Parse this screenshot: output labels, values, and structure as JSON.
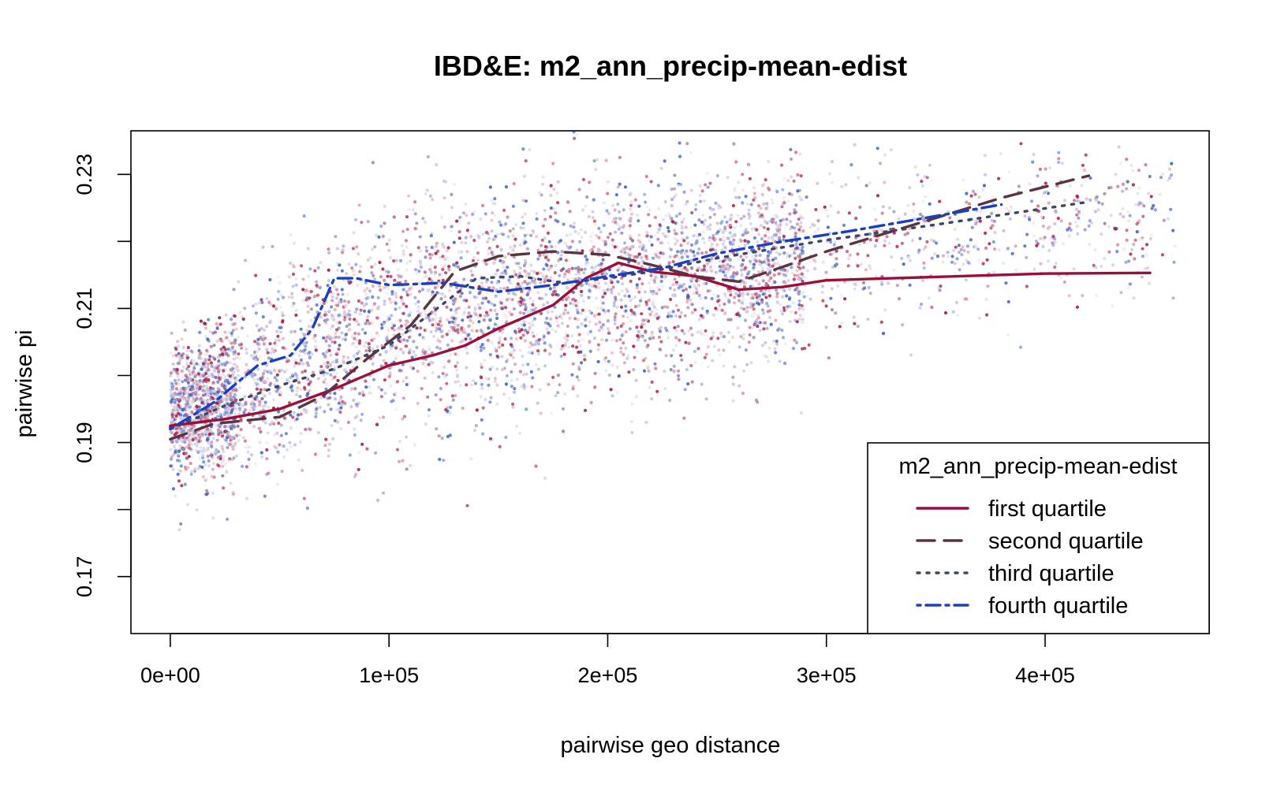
{
  "chart_data": {
    "type": "scatter",
    "title": "IBD&E: m2_ann_precip-mean-edist",
    "xlabel": "pairwise geo distance",
    "ylabel": "pairwise pi",
    "xlim": [
      -18000,
      475000
    ],
    "ylim": [
      0.1615,
      0.2365
    ],
    "x_ticks": [
      0,
      100000,
      200000,
      300000,
      400000
    ],
    "x_tick_labels": [
      "0e+00",
      "1e+05",
      "2e+05",
      "3e+05",
      "4e+05"
    ],
    "y_ticks": [
      0.17,
      0.18,
      0.19,
      0.2,
      0.21,
      0.22,
      0.23
    ],
    "y_tick_labels": [
      "0.17",
      "",
      "0.19",
      "",
      "0.21",
      "",
      "0.23"
    ],
    "grid": false,
    "legend": {
      "title": "m2_ann_precip-mean-edist",
      "position": "bottom-right",
      "entries": [
        "first quartile",
        "second quartile",
        "third quartile",
        "fourth quartile"
      ]
    },
    "point_colors": [
      "#a3123c",
      "#c9748f",
      "#e2b9c6",
      "#e3e2ea",
      "#c3c8e6",
      "#7f92d4",
      "#3a5fc0"
    ],
    "series": [
      {
        "name": "first quartile",
        "color": "#9b0f3a",
        "dash": "solid",
        "x": [
          0,
          25000,
          50000,
          75000,
          100000,
          120000,
          135000,
          150000,
          175000,
          190000,
          205000,
          220000,
          240000,
          260000,
          280000,
          300000,
          350000,
          400000,
          448000
        ],
        "y": [
          0.1925,
          0.1935,
          0.195,
          0.198,
          0.2015,
          0.203,
          0.2045,
          0.207,
          0.2105,
          0.2145,
          0.2168,
          0.2155,
          0.2148,
          0.2128,
          0.2132,
          0.2142,
          0.2147,
          0.2152,
          0.2153
        ]
      },
      {
        "name": "second quartile",
        "color": "#5c3340",
        "dash": "long",
        "x": [
          0,
          20000,
          50000,
          70000,
          90000,
          110000,
          130000,
          150000,
          175000,
          200000,
          220000,
          240000,
          260000,
          280000,
          300000,
          340000,
          380000,
          420000
        ],
        "y": [
          0.1905,
          0.1928,
          0.1938,
          0.197,
          0.2025,
          0.2075,
          0.2155,
          0.2178,
          0.2185,
          0.218,
          0.2165,
          0.2148,
          0.214,
          0.2162,
          0.2185,
          0.2225,
          0.2265,
          0.2298
        ]
      },
      {
        "name": "third quartile",
        "color": "#3e4566",
        "dash": "dotted",
        "x": [
          0,
          25000,
          50000,
          75000,
          100000,
          120000,
          140000,
          160000,
          180000,
          200000,
          220000,
          250000,
          300000,
          350000,
          418000
        ],
        "y": [
          0.192,
          0.1955,
          0.1985,
          0.201,
          0.2045,
          0.2095,
          0.2145,
          0.2148,
          0.2138,
          0.2145,
          0.2155,
          0.2175,
          0.2202,
          0.2225,
          0.2258
        ]
      },
      {
        "name": "fourth quartile",
        "color": "#1a3fc0",
        "dash": "dotdash",
        "x": [
          0,
          20000,
          40000,
          55000,
          65000,
          75000,
          85000,
          100000,
          125000,
          150000,
          175000,
          200000,
          225000,
          250000,
          280000,
          310000,
          340000,
          380000
        ],
        "y": [
          0.192,
          0.196,
          0.2015,
          0.203,
          0.207,
          0.2145,
          0.2145,
          0.2135,
          0.2138,
          0.2125,
          0.2135,
          0.2148,
          0.216,
          0.2182,
          0.22,
          0.2215,
          0.2232,
          0.2255
        ]
      }
    ]
  }
}
